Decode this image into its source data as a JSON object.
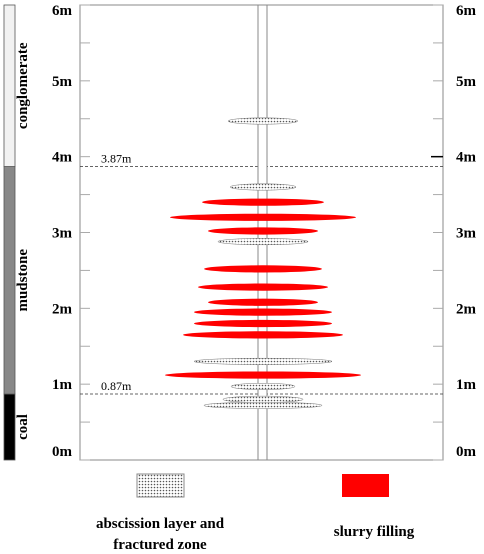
{
  "depth_scale": {
    "unit": "m",
    "min": 0,
    "max": 6,
    "labels": [
      "0m",
      "1m",
      "2m",
      "3m",
      "4m",
      "5m",
      "6m"
    ]
  },
  "strata": [
    {
      "name": "coal",
      "from": 0,
      "to": 0.87,
      "color": "#000000"
    },
    {
      "name": "mudstone",
      "from": 0.87,
      "to": 3.87,
      "color": "#888888"
    },
    {
      "name": "conglomerate",
      "from": 3.87,
      "to": 6,
      "color": "#f2f2f2"
    }
  ],
  "boundaries": [
    {
      "depth": 3.87,
      "label": "3.87m"
    },
    {
      "depth": 0.87,
      "label": "0.87m"
    }
  ],
  "zones": [
    {
      "type": "fracture",
      "depth": 4.47,
      "width": 70
    },
    {
      "type": "fracture",
      "depth": 3.6,
      "width": 66
    },
    {
      "type": "slurry",
      "depth": 3.4,
      "width": 122
    },
    {
      "type": "slurry",
      "depth": 3.2,
      "width": 186
    },
    {
      "type": "slurry",
      "depth": 3.02,
      "width": 110
    },
    {
      "type": "fracture",
      "depth": 2.88,
      "width": 90
    },
    {
      "type": "slurry",
      "depth": 2.52,
      "width": 118
    },
    {
      "type": "slurry",
      "depth": 2.28,
      "width": 130
    },
    {
      "type": "slurry",
      "depth": 2.08,
      "width": 110
    },
    {
      "type": "slurry",
      "depth": 1.95,
      "width": 138
    },
    {
      "type": "slurry",
      "depth": 1.8,
      "width": 138
    },
    {
      "type": "slurry",
      "depth": 1.65,
      "width": 160
    },
    {
      "type": "fracture",
      "depth": 1.3,
      "width": 138
    },
    {
      "type": "slurry",
      "depth": 1.12,
      "width": 196
    },
    {
      "type": "fracture",
      "depth": 0.97,
      "width": 64
    },
    {
      "type": "fracture",
      "depth": 0.8,
      "width": 80
    },
    {
      "type": "fracture",
      "depth": 0.72,
      "width": 118
    }
  ],
  "legend": {
    "fracture": {
      "line1": "abscission layer and",
      "line2": "fractured zone"
    },
    "slurry": {
      "label": "slurry filling"
    }
  },
  "colors": {
    "slurry": "#ff0000",
    "fracture": "#bbbbbb"
  }
}
